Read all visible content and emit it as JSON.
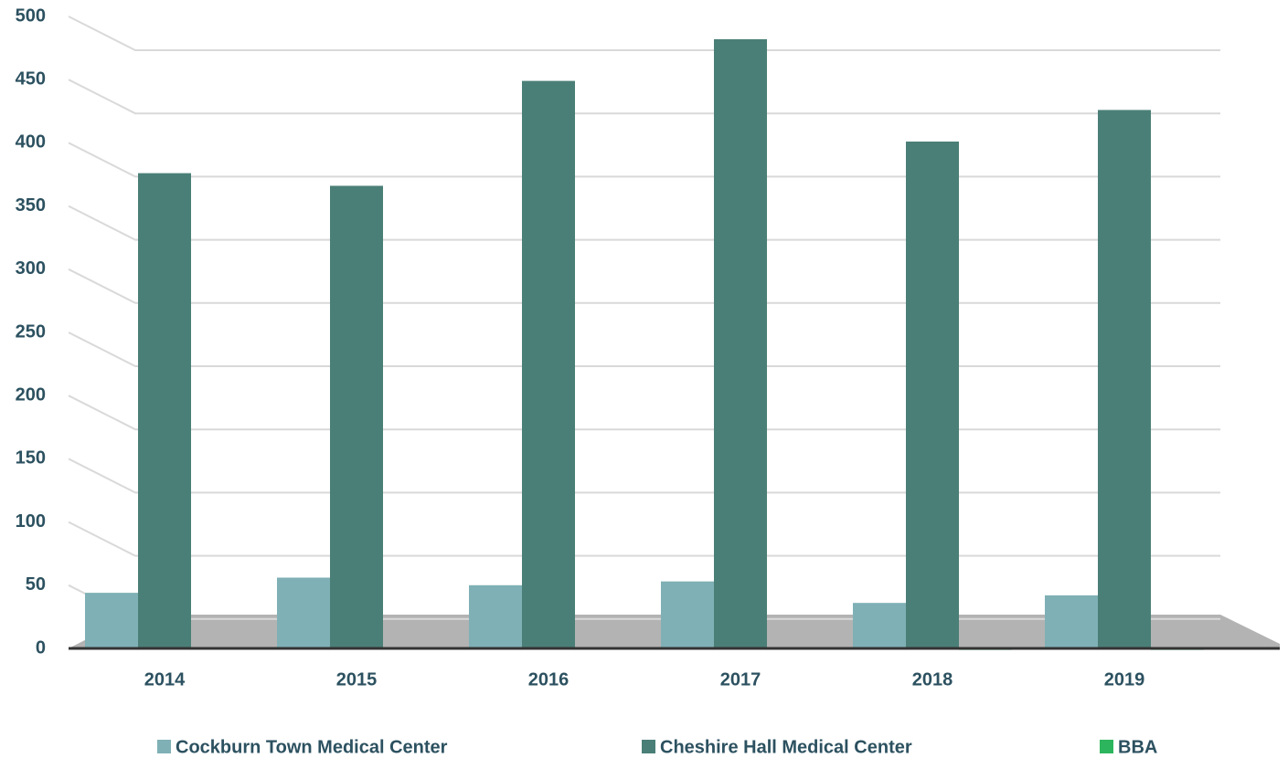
{
  "chart_data": {
    "type": "bar",
    "categories": [
      "2014",
      "2015",
      "2016",
      "2017",
      "2018",
      "2019"
    ],
    "series": [
      {
        "name": "Cockburn Town Medical Center",
        "color": "#7fb0b5",
        "values": [
          44,
          56,
          50,
          53,
          36,
          42
        ]
      },
      {
        "name": "Cheshire Hall Medical Center",
        "color": "#4a7f77",
        "values": [
          376,
          366,
          449,
          482,
          401,
          426
        ]
      },
      {
        "name": "BBA",
        "color": "#2db55d",
        "values": [
          null,
          null,
          null,
          null,
          1,
          1
        ]
      }
    ],
    "ylim": [
      0,
      500
    ],
    "yticks": [
      0,
      50,
      100,
      150,
      200,
      250,
      300,
      350,
      400,
      450,
      500
    ],
    "grid": true
  }
}
